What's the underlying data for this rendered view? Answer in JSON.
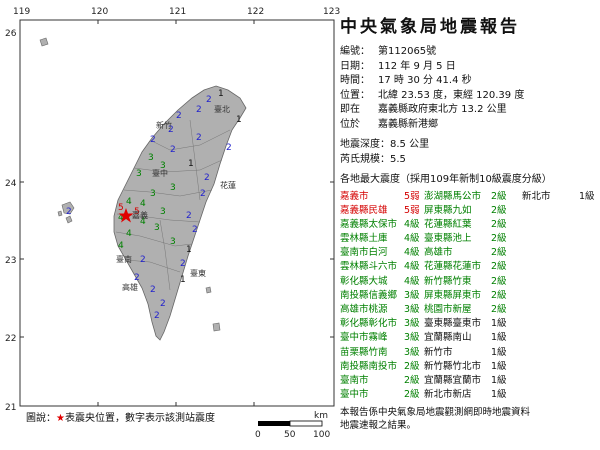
{
  "map": {
    "lon_ticks": [
      "119",
      "120",
      "121",
      "122",
      "123"
    ],
    "lat_ticks": [
      "26",
      "24",
      "23",
      "22",
      "21"
    ],
    "sea_color": "#ffffff",
    "land_color": "#b0b0b0",
    "epicenter_color": "#e00000",
    "station_colors": {
      "5": "#d40000",
      "4": "#008000",
      "3": "#008000",
      "2": "#2222cc",
      "1": "#111111"
    },
    "cities": [
      "臺北",
      "新竹",
      "臺中",
      "嘉義",
      "臺南",
      "高雄",
      "花蓮",
      "臺東"
    ],
    "station_labels": [
      {
        "id": "s1",
        "g": "1"
      },
      {
        "id": "s2",
        "g": "2"
      },
      {
        "id": "s3",
        "g": "2"
      },
      {
        "id": "s4",
        "g": "1"
      },
      {
        "id": "s5",
        "g": "2"
      },
      {
        "id": "s6",
        "g": "2"
      },
      {
        "id": "s7",
        "g": "2"
      },
      {
        "id": "s8",
        "g": "2"
      },
      {
        "id": "s9",
        "g": "3"
      },
      {
        "id": "s10",
        "g": "3"
      },
      {
        "id": "s11",
        "g": "3"
      },
      {
        "id": "s12",
        "g": "3"
      },
      {
        "id": "s13",
        "g": "3"
      },
      {
        "id": "s14",
        "g": "4"
      },
      {
        "id": "s15",
        "g": "4"
      },
      {
        "id": "s16",
        "g": "4"
      },
      {
        "id": "s17",
        "g": "4"
      },
      {
        "id": "s18",
        "g": "5"
      },
      {
        "id": "s19",
        "g": "5"
      },
      {
        "id": "s20",
        "g": "4"
      },
      {
        "id": "s21",
        "g": "4"
      },
      {
        "id": "s22",
        "g": "3"
      },
      {
        "id": "s23",
        "g": "3"
      },
      {
        "id": "s24",
        "g": "2"
      },
      {
        "id": "s25",
        "g": "2"
      },
      {
        "id": "s26",
        "g": "2"
      },
      {
        "id": "s27",
        "g": "2"
      },
      {
        "id": "s28",
        "g": "2"
      },
      {
        "id": "s29",
        "g": "2"
      },
      {
        "id": "s30",
        "g": "2"
      },
      {
        "id": "s31",
        "g": "1"
      },
      {
        "id": "s32",
        "g": "1"
      },
      {
        "id": "s33",
        "g": "2"
      },
      {
        "id": "s34",
        "g": "2"
      },
      {
        "id": "s35",
        "g": "2"
      },
      {
        "id": "s36",
        "g": "2"
      },
      {
        "id": "s37",
        "g": "2"
      },
      {
        "id": "s38",
        "g": "1"
      },
      {
        "id": "s39",
        "g": "2"
      },
      {
        "id": "s40",
        "g": "3"
      }
    ],
    "scale": {
      "unit": "km",
      "ticks": [
        "0",
        "50",
        "100"
      ]
    },
    "legend_prefix": "圖說：",
    "legend_star": "★",
    "legend_text": "表震央位置，數字表示該測站震度"
  },
  "report": {
    "title": "中央氣象局地震報告",
    "serial_label": "編號：",
    "serial": "第112065號",
    "date_label": "日期：",
    "date": "112 年 9 月 5 日",
    "time_label": "時間：",
    "time": "17 時 30 分 41.4 秒",
    "location_label": "位置：",
    "location": "北緯 23.53 度，東經 120.39 度",
    "distance_label": "即在",
    "distance": "嘉義縣政府東北方 13.2 公里",
    "region_label": "位於",
    "region": "嘉義縣新港鄉",
    "depth_label": "地震深度：",
    "depth": "8.5 公里",
    "magnitude_label": "芮氏規模：",
    "magnitude": "5.5",
    "intensity_header": "各地最大震度（採用109年新制10級震度分級）",
    "intensity_rows": [
      {
        "c1": "嘉義市",
        "g1": "5弱",
        "c2": "澎湖縣馬公市",
        "g2": "2級",
        "c3": "新北市",
        "g3": "1級"
      },
      {
        "c1": "嘉義縣民雄",
        "g1": "5弱",
        "c2": "屏東縣九如",
        "g2": "2級",
        "c3": "",
        "g3": ""
      },
      {
        "c1": "嘉義縣太保市",
        "g1": "4級",
        "c2": "花蓮縣紅葉",
        "g2": "2級",
        "c3": "",
        "g3": ""
      },
      {
        "c1": "雲林縣土庫",
        "g1": "4級",
        "c2": "臺東縣池上",
        "g2": "2級",
        "c3": "",
        "g3": ""
      },
      {
        "c1": "臺南市白河",
        "g1": "4級",
        "c2": "高雄市",
        "g2": "2級",
        "c3": "",
        "g3": ""
      },
      {
        "c1": "雲林縣斗六市",
        "g1": "4級",
        "c2": "花蓮縣花蓮市",
        "g2": "2級",
        "c3": "",
        "g3": ""
      },
      {
        "c1": "彰化縣大城",
        "g1": "4級",
        "c2": "新竹縣竹東",
        "g2": "2級",
        "c3": "",
        "g3": ""
      },
      {
        "c1": "南投縣信義鄉",
        "g1": "3級",
        "c2": "屏東縣屏東市",
        "g2": "2級",
        "c3": "",
        "g3": ""
      },
      {
        "c1": "高雄市桃源",
        "g1": "3級",
        "c2": "桃園市新屋",
        "g2": "2級",
        "c3": "",
        "g3": ""
      },
      {
        "c1": "彰化縣彰化市",
        "g1": "3級",
        "c2": "臺東縣臺東市",
        "g2": "1級",
        "c3": "",
        "g3": ""
      },
      {
        "c1": "臺中市霧峰",
        "g1": "3級",
        "c2": "宜蘭縣南山",
        "g2": "1級",
        "c3": "",
        "g3": ""
      },
      {
        "c1": "苗栗縣竹南",
        "g1": "3級",
        "c2": "新竹市",
        "g2": "1級",
        "c3": "",
        "g3": ""
      },
      {
        "c1": "南投縣南投市",
        "g1": "2級",
        "c2": "新竹縣竹北市",
        "g2": "1級",
        "c3": "",
        "g3": ""
      },
      {
        "c1": "臺南市",
        "g1": "2級",
        "c2": "宜蘭縣宜蘭市",
        "g2": "1級",
        "c3": "",
        "g3": ""
      },
      {
        "c1": "臺中市",
        "g1": "2級",
        "c2": "新北市新店",
        "g2": "1級",
        "c3": "",
        "g3": ""
      }
    ],
    "note_line1": "本報告係中央氣象局地震觀測網即時地震資料",
    "note_line2": "地震速報之結果。"
  }
}
